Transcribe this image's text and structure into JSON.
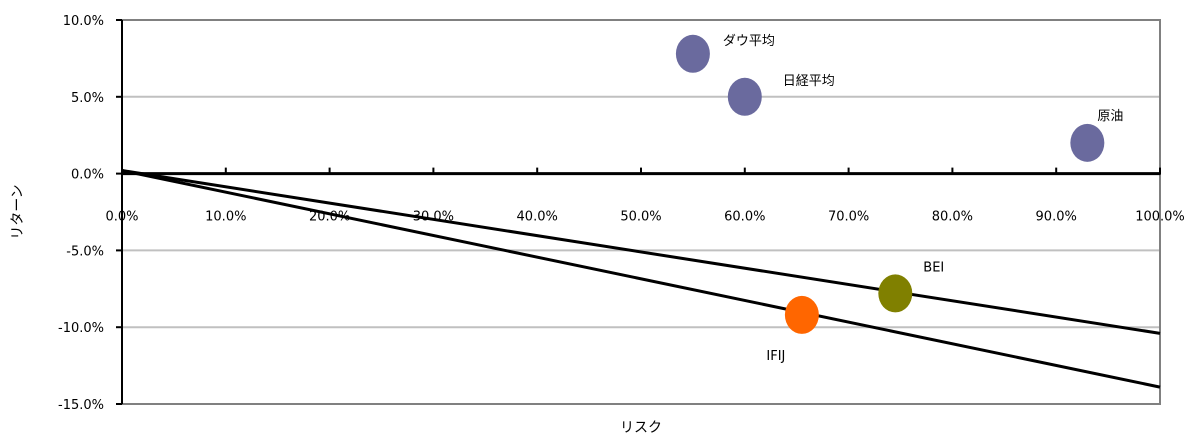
{
  "chart_data": {
    "type": "scatter",
    "xlabel": "リスク",
    "ylabel": "リターン",
    "xlim": [
      0,
      100
    ],
    "ylim": [
      -15,
      10
    ],
    "x_ticks": [
      "0.0%",
      "10.0%",
      "20.0%",
      "30.0%",
      "40.0%",
      "50.0%",
      "60.0%",
      "70.0%",
      "80.0%",
      "90.0%",
      "100.0%"
    ],
    "x_tick_values": [
      0,
      10,
      20,
      30,
      40,
      50,
      60,
      70,
      80,
      90,
      100
    ],
    "y_ticks": [
      "10.0%",
      "5.0%",
      "0.0%",
      "-5.0%",
      "-10.0%",
      "-15.0%"
    ],
    "y_tick_values": [
      10,
      5,
      0,
      -5,
      -10,
      -15
    ],
    "grid": "horizontal",
    "points": [
      {
        "label": "ダウ平均",
        "x": 55.0,
        "y": 7.8,
        "color": "#6a6a9e"
      },
      {
        "label": "日経平均",
        "x": 60.0,
        "y": 5.0,
        "color": "#6a6a9e"
      },
      {
        "label": "原油",
        "x": 93.0,
        "y": 2.0,
        "color": "#6a6a9e"
      },
      {
        "label": "BEI",
        "x": 74.5,
        "y": -7.8,
        "color": "#808000"
      },
      {
        "label": "IFIJ",
        "x": 65.5,
        "y": -9.2,
        "color": "#ff6600"
      }
    ],
    "lines": [
      {
        "x": [
          0,
          100
        ],
        "y": [
          0.2,
          -10.4
        ],
        "color": "#000000"
      },
      {
        "x": [
          0,
          100
        ],
        "y": [
          0.2,
          -13.9
        ],
        "color": "#000000"
      }
    ]
  }
}
